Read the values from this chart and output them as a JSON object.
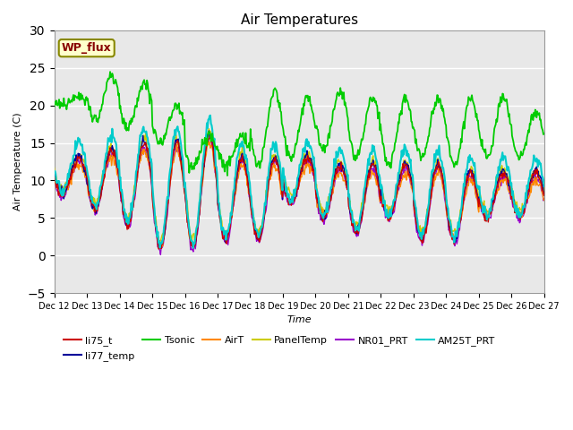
{
  "title": "Air Temperatures",
  "xlabel": "Time",
  "ylabel": "Air Temperature (C)",
  "ylim": [
    -5,
    30
  ],
  "yticks": [
    -5,
    0,
    5,
    10,
    15,
    20,
    25,
    30
  ],
  "plot_bg_color": "#e8e8e8",
  "tick_labels": [
    "Dec 12",
    "Dec 13",
    "Dec 14",
    "Dec 15",
    "Dec 16",
    "Dec 17",
    "Dec 18",
    "Dec 19",
    "Dec 20",
    "Dec 21",
    "Dec 22",
    "Dec 23",
    "Dec 24",
    "Dec 25",
    "Dec 26",
    "Dec 27"
  ],
  "wp_flux_label": "WP_flux",
  "wp_flux_box_color": "#ffffcc",
  "wp_flux_text_color": "#880000",
  "wp_flux_border_color": "#888800",
  "legend_colors": [
    "#cc0000",
    "#000099",
    "#00cc00",
    "#ff8800",
    "#cccc00",
    "#9900cc",
    "#00cccc"
  ],
  "legend_entries": [
    "li75_t",
    "li77_temp",
    "Tsonic",
    "AirT",
    "PanelTemp",
    "NR01_PRT",
    "AM25T_PRT"
  ]
}
